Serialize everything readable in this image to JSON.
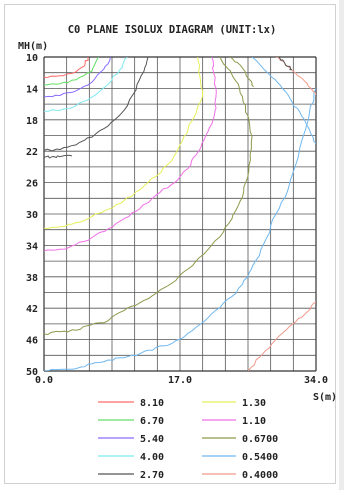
{
  "chart_data": {
    "type": "contour",
    "title": "C0 PLANE ISOLUX DIAGRAM (UNIT:lx)",
    "ylabel": "MH(m)",
    "xlabel": "S(m)",
    "x_ticks": [
      "0.0",
      "17.0",
      "34.0"
    ],
    "y_ticks": [
      "10",
      "14",
      "18",
      "22",
      "26",
      "30",
      "34",
      "38",
      "42",
      "46",
      "50"
    ],
    "xlim": [
      0,
      34
    ],
    "ylim": [
      10,
      50
    ],
    "grid": true,
    "legend_position": "bottom",
    "series": [
      {
        "name": "8.10",
        "color": "#ff6b6b",
        "x": [
          0,
          2,
          4,
          5,
          5.5
        ],
        "y": [
          12.6,
          12.4,
          11.9,
          11.2,
          10
        ]
      },
      {
        "name": "6.70",
        "color": "#66dd66",
        "x": [
          0,
          2,
          4,
          6,
          6.8
        ],
        "y": [
          13.6,
          13.4,
          12.9,
          11.8,
          10
        ]
      },
      {
        "name": "5.40",
        "color": "#8a6cff",
        "x": [
          0,
          2,
          4,
          6,
          7.5,
          8.3
        ],
        "y": [
          15.1,
          14.9,
          14.3,
          13.2,
          11.5,
          10
        ]
      },
      {
        "name": "4.00",
        "color": "#7fe9f0",
        "x": [
          0,
          2,
          4,
          6,
          8,
          9.5,
          10.4
        ],
        "y": [
          16.9,
          16.8,
          16.2,
          15.1,
          13.5,
          11.6,
          10
        ]
      },
      {
        "name": "2.70",
        "color": "#555555",
        "x": [
          0,
          2,
          4,
          6,
          8,
          10,
          11.5,
          12.5,
          13.0
        ],
        "y": [
          21.9,
          21.8,
          21.2,
          20.2,
          18.8,
          16.8,
          14.2,
          11.8,
          10
        ]
      },
      {
        "name": "1.30",
        "color": "#e6f05a",
        "x": [
          0,
          2,
          4,
          6,
          8,
          10,
          12,
          14,
          16,
          17,
          18,
          19,
          19.8,
          19.5,
          19.2
        ],
        "y": [
          31.8,
          31.6,
          31.1,
          30.3,
          29.4,
          28.3,
          26.9,
          25.2,
          23.2,
          21.2,
          19.2,
          17.2,
          15.1,
          12.5,
          10
        ]
      },
      {
        "name": "1.10",
        "color": "#f070e6",
        "x": [
          0,
          2,
          4,
          6,
          8,
          10,
          12,
          14,
          16,
          18,
          19,
          20,
          21,
          21.5,
          21.5,
          21.2,
          21.0
        ],
        "y": [
          34.7,
          34.5,
          33.9,
          33.0,
          31.9,
          30.6,
          29.3,
          27.6,
          26.2,
          24.2,
          22.5,
          20.6,
          18.5,
          16.5,
          14.0,
          12.0,
          10
        ]
      },
      {
        "name": "0.6700",
        "color": "#8d9a4b",
        "x": [
          0,
          2,
          4,
          6,
          8,
          10,
          12,
          14,
          16,
          18,
          20,
          22,
          23.5,
          24.5,
          25.2,
          25.8,
          26.0,
          25.5,
          24.8,
          24.0,
          23.0,
          22.0
        ],
        "y": [
          45.3,
          45.0,
          44.8,
          44.1,
          43.6,
          42.3,
          41.3,
          40.1,
          38.8,
          37.0,
          35.1,
          32.9,
          30.6,
          28.4,
          26.0,
          23.1,
          20.1,
          17.5,
          15.0,
          13.1,
          11.5,
          10
        ]
      },
      {
        "name": "0.5400",
        "color": "#70b8f0",
        "x": [
          0,
          2,
          4,
          6,
          8,
          10,
          12,
          14,
          16,
          18,
          20,
          22,
          24,
          25.5,
          26.5,
          27.8,
          29.0,
          30.5,
          32.0,
          33.2,
          34.0
        ],
        "y": [
          50.0,
          49.8,
          49.7,
          49.1,
          48.6,
          48.3,
          47.8,
          47.0,
          46.5,
          45.2,
          43.7,
          41.9,
          40.1,
          38.0,
          35.9,
          33.1,
          30.0,
          26.9,
          21.5,
          17.0,
          14.0
        ]
      },
      {
        "name": "0.4000",
        "color": "#f09a8a",
        "x": [
          25.5,
          27.0,
          28.5,
          30.0,
          31.5,
          33.0,
          34.0
        ],
        "y": [
          50,
          48.2,
          46.5,
          45.0,
          43.7,
          42.4,
          41.2
        ]
      }
    ],
    "extra_curves": [
      {
        "color": "#555555",
        "x": [
          0,
          1,
          2,
          3.5
        ],
        "y": [
          22.8,
          22.7,
          22.7,
          22.6
        ]
      },
      {
        "color": "#8d9a4b",
        "x": [
          23.3,
          24.5,
          25.2,
          25.9,
          26.2
        ],
        "y": [
          10,
          11.0,
          12.0,
          13.1,
          13.8
        ]
      },
      {
        "color": "#70b8f0",
        "x": [
          26.0,
          27.2,
          28.5,
          29.8,
          31.0,
          32.2,
          33.2,
          34.0
        ],
        "y": [
          10,
          11.2,
          12.6,
          14.0,
          15.7,
          17.5,
          19.3,
          21.0
        ]
      },
      {
        "color": "#f09a8a",
        "x": [
          29.0,
          30.2,
          31.4,
          32.6,
          33.6,
          34.0
        ],
        "y": [
          10,
          11.0,
          12.0,
          13.1,
          14.3,
          14.8
        ]
      },
      {
        "color": "#555555",
        "x": [
          29.4,
          30.0,
          30.5,
          31.0
        ],
        "y": [
          10,
          10.6,
          11.2,
          11.6
        ]
      }
    ]
  }
}
